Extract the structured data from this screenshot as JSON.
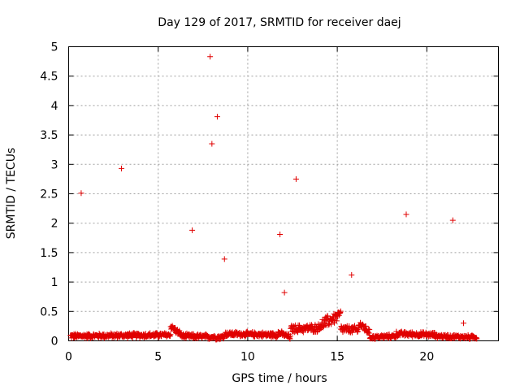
{
  "chart_data": {
    "type": "scatter",
    "title": "Day 129 of 2017, SRMTID for receiver daej",
    "xlabel": "GPS time / hours",
    "ylabel": "SRMTID / TECUs",
    "xlim": [
      0,
      24
    ],
    "ylim": [
      0,
      5
    ],
    "xticks": [
      0,
      5,
      10,
      15,
      20
    ],
    "yticks": [
      0,
      0.5,
      1,
      1.5,
      2,
      2.5,
      3,
      3.5,
      4,
      4.5,
      5
    ],
    "ytick_labels": [
      "0",
      "0.5",
      "1",
      "1.5",
      "2",
      "2.5",
      "3",
      "3.5",
      "4",
      "4.5",
      "5"
    ],
    "grid": true,
    "marker": "plus",
    "marker_color": "#e00000",
    "outliers": [
      {
        "x": 0.7,
        "y": 2.51
      },
      {
        "x": 2.95,
        "y": 2.93
      },
      {
        "x": 6.9,
        "y": 1.88
      },
      {
        "x": 7.9,
        "y": 4.83
      },
      {
        "x": 8.0,
        "y": 3.35
      },
      {
        "x": 8.3,
        "y": 3.81
      },
      {
        "x": 8.7,
        "y": 1.39
      },
      {
        "x": 11.8,
        "y": 1.81
      },
      {
        "x": 12.05,
        "y": 0.82
      },
      {
        "x": 12.7,
        "y": 2.75
      },
      {
        "x": 15.8,
        "y": 1.12
      },
      {
        "x": 18.85,
        "y": 2.15
      },
      {
        "x": 21.45,
        "y": 2.05
      },
      {
        "x": 22.05,
        "y": 0.3
      }
    ],
    "baseline_segments": [
      {
        "x_start": 0.1,
        "x_end": 5.7,
        "y_start": 0.08,
        "y_end": 0.1,
        "spread": 0.05
      },
      {
        "x_start": 5.7,
        "x_end": 6.4,
        "y_start": 0.25,
        "y_end": 0.07,
        "spread": 0.06
      },
      {
        "x_start": 6.4,
        "x_end": 8.7,
        "y_start": 0.08,
        "y_end": 0.06,
        "spread": 0.05
      },
      {
        "x_start": 8.7,
        "x_end": 11.7,
        "y_start": 0.12,
        "y_end": 0.1,
        "spread": 0.05
      },
      {
        "x_start": 11.7,
        "x_end": 12.4,
        "y_start": 0.14,
        "y_end": 0.06,
        "spread": 0.05
      },
      {
        "x_start": 12.4,
        "x_end": 14.0,
        "y_start": 0.2,
        "y_end": 0.22,
        "spread": 0.08
      },
      {
        "x_start": 14.0,
        "x_end": 15.2,
        "y_start": 0.25,
        "y_end": 0.45,
        "spread": 0.12
      },
      {
        "x_start": 15.2,
        "x_end": 16.2,
        "y_start": 0.2,
        "y_end": 0.18,
        "spread": 0.08
      },
      {
        "x_start": 16.2,
        "x_end": 16.8,
        "y_start": 0.3,
        "y_end": 0.15,
        "spread": 0.08
      },
      {
        "x_start": 16.8,
        "x_end": 18.3,
        "y_start": 0.06,
        "y_end": 0.08,
        "spread": 0.04
      },
      {
        "x_start": 18.3,
        "x_end": 20.5,
        "y_start": 0.12,
        "y_end": 0.1,
        "spread": 0.05
      },
      {
        "x_start": 20.5,
        "x_end": 22.8,
        "y_start": 0.08,
        "y_end": 0.06,
        "spread": 0.04
      }
    ]
  }
}
